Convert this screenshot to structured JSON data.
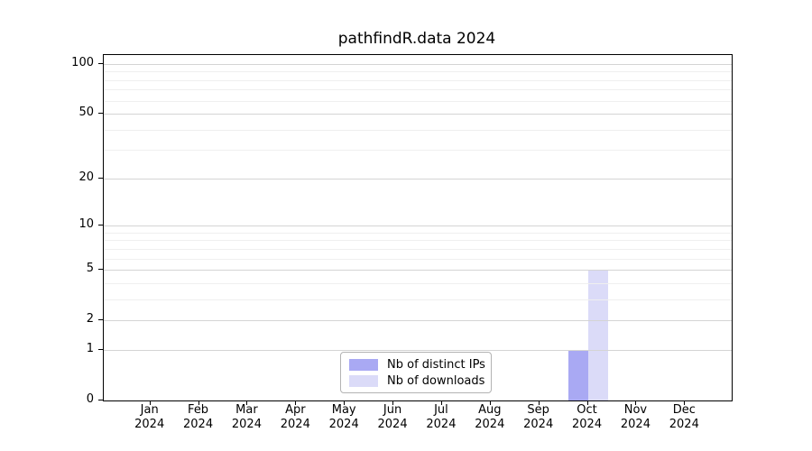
{
  "chart_data": {
    "type": "bar",
    "title": "pathfindR.data 2024",
    "xlabel": "",
    "ylabel": "",
    "categories": [
      "Jan 2024",
      "Feb 2024",
      "Mar 2024",
      "Apr 2024",
      "May 2024",
      "Jun 2024",
      "Jul 2024",
      "Aug 2024",
      "Sep 2024",
      "Oct 2024",
      "Nov 2024",
      "Dec 2024"
    ],
    "series": [
      {
        "name": "Nb of distinct IPs",
        "color": "#a9a9f3",
        "values": [
          0,
          0,
          0,
          0,
          0,
          0,
          0,
          0,
          0,
          1,
          0,
          0
        ]
      },
      {
        "name": "Nb of downloads",
        "color": "#dbdbf8",
        "values": [
          0,
          0,
          0,
          0,
          0,
          0,
          0,
          0,
          0,
          5,
          0,
          0
        ]
      }
    ],
    "y_scale": "log1p",
    "y_major_ticks": [
      0,
      1,
      2,
      5,
      10,
      20,
      50,
      100
    ],
    "y_minor_gridlines": [
      3,
      4,
      6,
      7,
      8,
      9,
      30,
      40,
      60,
      70,
      80,
      90
    ],
    "ylim": [
      0,
      113
    ],
    "grid": true,
    "legend_position": "lower center"
  },
  "colors": {
    "major_grid": "#d4d4d4",
    "minor_grid": "#efefef",
    "spine": "#000000",
    "text": "#000000",
    "legend_border": "#b3b3b3",
    "background": "#ffffff"
  }
}
